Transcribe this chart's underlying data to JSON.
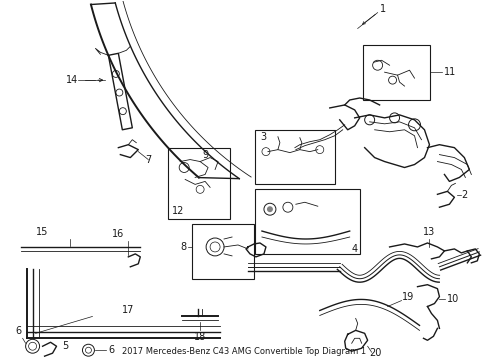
{
  "title": "2017 Mercedes-Benz C43 AMG Convertible Top Diagram 1",
  "bg_color": "#ffffff",
  "line_color": "#1a1a1a",
  "text_color": "#1a1a1a",
  "fig_width": 4.89,
  "fig_height": 3.6,
  "dpi": 100
}
